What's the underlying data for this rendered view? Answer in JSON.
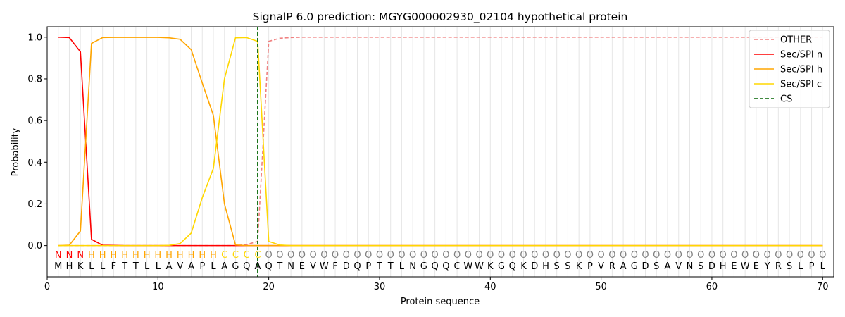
{
  "chart_data": {
    "type": "line",
    "title": "SignalP 6.0 prediction: MGYG000002930_02104 hypothetical protein",
    "xlabel": "Protein sequence",
    "ylabel": "Probability",
    "xlim": [
      0,
      71
    ],
    "ylim": [
      -0.15,
      1.05
    ],
    "xticks": [
      0,
      10,
      20,
      30,
      40,
      50,
      60,
      70
    ],
    "yticks": [
      0.0,
      0.2,
      0.4,
      0.6,
      0.8,
      1.0
    ],
    "grid": "vertical lines at each residue",
    "legend_position": "top-right",
    "sequence": [
      "M",
      "H",
      "K",
      "L",
      "L",
      "F",
      "T",
      "T",
      "L",
      "L",
      "A",
      "V",
      "A",
      "P",
      "L",
      "A",
      "G",
      "Q",
      "A",
      "Q",
      "T",
      "N",
      "E",
      "V",
      "W",
      "F",
      "D",
      "Q",
      "P",
      "T",
      "T",
      "L",
      "N",
      "G",
      "Q",
      "Q",
      "C",
      "W",
      "W",
      "K",
      "G",
      "Q",
      "K",
      "D",
      "H",
      "S",
      "S",
      "K",
      "P",
      "V",
      "R",
      "A",
      "G",
      "D",
      "S",
      "A",
      "V",
      "N",
      "S",
      "D",
      "H",
      "E",
      "W",
      "E",
      "Y",
      "R",
      "S",
      "L",
      "P",
      "L"
    ],
    "region_labels": [
      "N",
      "N",
      "N",
      "H",
      "H",
      "H",
      "H",
      "H",
      "H",
      "H",
      "H",
      "H",
      "H",
      "H",
      "H",
      "C",
      "C",
      "C",
      "C",
      "O",
      "O",
      "O",
      "O",
      "O",
      "O",
      "O",
      "O",
      "O",
      "O",
      "O",
      "O",
      "O",
      "O",
      "O",
      "O",
      "O",
      "O",
      "O",
      "O",
      "O",
      "O",
      "O",
      "O",
      "O",
      "O",
      "O",
      "O",
      "O",
      "O",
      "O",
      "O",
      "O",
      "O",
      "O",
      "O",
      "O",
      "O",
      "O",
      "O",
      "O",
      "O",
      "O",
      "O",
      "O",
      "O",
      "O",
      "O",
      "O",
      "O",
      "O"
    ],
    "region_colors": {
      "N": "#ff0000",
      "H": "#ffa500",
      "C": "#ffd700",
      "O": "#808080"
    },
    "cleavage_site": 19,
    "series": [
      {
        "name": "OTHER",
        "color": "#f08080",
        "dash": "dashed",
        "x_start": 1,
        "values": [
          0.0,
          0.0,
          0.0,
          0.0,
          0.0,
          0.0,
          0.0,
          0.0,
          0.0,
          0.0,
          0.0,
          0.0,
          0.0,
          0.0,
          0.0,
          0.0,
          0.0,
          0.005,
          0.02,
          0.98,
          0.995,
          0.998,
          1.0,
          1.0,
          1.0,
          1.0,
          1.0,
          1.0,
          1.0,
          1.0,
          1.0,
          1.0,
          1.0,
          1.0,
          1.0,
          1.0,
          1.0,
          1.0,
          1.0,
          1.0,
          1.0,
          1.0,
          1.0,
          1.0,
          1.0,
          1.0,
          1.0,
          1.0,
          1.0,
          1.0,
          1.0,
          1.0,
          1.0,
          1.0,
          1.0,
          1.0,
          1.0,
          1.0,
          1.0,
          1.0,
          1.0,
          1.0,
          1.0,
          1.0,
          1.0,
          1.0,
          1.0,
          1.0,
          1.0,
          1.0
        ]
      },
      {
        "name": "Sec/SPI n",
        "color": "#ff0000",
        "dash": "solid",
        "x_start": 1,
        "values": [
          1.0,
          0.998,
          0.93,
          0.03,
          0.002,
          0.001,
          0.0,
          0.0,
          0.0,
          0.0,
          0.0,
          0.0,
          0.0,
          0.0,
          0.0,
          0.0,
          0.0,
          0.0,
          0.0,
          0.0,
          0.0,
          0.0,
          0.0,
          0.0,
          0.0,
          0.0,
          0.0,
          0.0,
          0.0,
          0.0,
          0.0,
          0.0,
          0.0,
          0.0,
          0.0,
          0.0,
          0.0,
          0.0,
          0.0,
          0.0,
          0.0,
          0.0,
          0.0,
          0.0,
          0.0,
          0.0,
          0.0,
          0.0,
          0.0,
          0.0,
          0.0,
          0.0,
          0.0,
          0.0,
          0.0,
          0.0,
          0.0,
          0.0,
          0.0,
          0.0,
          0.0,
          0.0,
          0.0,
          0.0,
          0.0,
          0.0,
          0.0,
          0.0,
          0.0,
          0.0
        ]
      },
      {
        "name": "Sec/SPI h",
        "color": "#ffa500",
        "dash": "solid",
        "x_start": 1,
        "values": [
          0.0,
          0.002,
          0.07,
          0.97,
          0.998,
          0.999,
          0.999,
          0.999,
          0.999,
          0.999,
          0.997,
          0.99,
          0.94,
          0.78,
          0.625,
          0.2,
          0.003,
          0.0,
          0.0,
          0.0,
          0.0,
          0.0,
          0.0,
          0.0,
          0.0,
          0.0,
          0.0,
          0.0,
          0.0,
          0.0,
          0.0,
          0.0,
          0.0,
          0.0,
          0.0,
          0.0,
          0.0,
          0.0,
          0.0,
          0.0,
          0.0,
          0.0,
          0.0,
          0.0,
          0.0,
          0.0,
          0.0,
          0.0,
          0.0,
          0.0,
          0.0,
          0.0,
          0.0,
          0.0,
          0.0,
          0.0,
          0.0,
          0.0,
          0.0,
          0.0,
          0.0,
          0.0,
          0.0,
          0.0,
          0.0,
          0.0,
          0.0,
          0.0,
          0.0,
          0.0
        ]
      },
      {
        "name": "Sec/SPI c",
        "color": "#ffd700",
        "dash": "solid",
        "x_start": 1,
        "values": [
          0.0,
          0.0,
          0.0,
          0.0,
          0.0,
          0.0,
          0.0,
          0.0,
          0.0,
          0.0,
          0.001,
          0.01,
          0.06,
          0.23,
          0.37,
          0.8,
          0.997,
          0.998,
          0.98,
          0.02,
          0.003,
          0.0,
          0.0,
          0.0,
          0.0,
          0.0,
          0.0,
          0.0,
          0.0,
          0.0,
          0.0,
          0.0,
          0.0,
          0.0,
          0.0,
          0.0,
          0.0,
          0.0,
          0.0,
          0.0,
          0.0,
          0.0,
          0.0,
          0.0,
          0.0,
          0.0,
          0.0,
          0.0,
          0.0,
          0.0,
          0.0,
          0.0,
          0.0,
          0.0,
          0.0,
          0.0,
          0.0,
          0.0,
          0.0,
          0.0,
          0.0,
          0.0,
          0.0,
          0.0,
          0.0,
          0.0,
          0.0,
          0.0,
          0.0,
          0.0
        ]
      },
      {
        "name": "CS",
        "color": "#006400",
        "dash": "dashed",
        "type": "vline",
        "x": 19
      }
    ]
  }
}
